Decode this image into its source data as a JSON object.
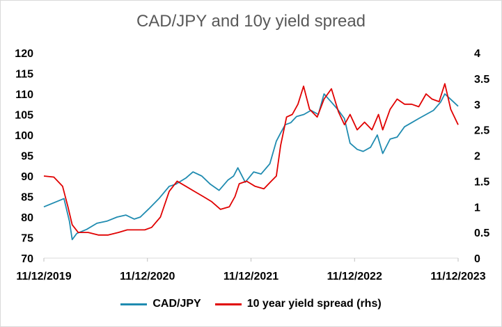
{
  "chart_data": {
    "type": "line",
    "title": "CAD/JPY and 10y yield spread",
    "x_tick_labels": [
      "11/12/2019",
      "11/12/2020",
      "11/12/2021",
      "11/12/2022",
      "11/12/2023"
    ],
    "x_range": [
      "2019-12-11",
      "2023-12-11"
    ],
    "y_left": {
      "range": [
        70,
        120
      ],
      "ticks": [
        "70",
        "75",
        "80",
        "85",
        "90",
        "95",
        "100",
        "105",
        "110",
        "115",
        "120"
      ]
    },
    "y_right": {
      "range": [
        0,
        4
      ],
      "ticks": [
        "0",
        "0.5",
        "1",
        "1.5",
        "2",
        "2.5",
        "3",
        "3.5",
        "4"
      ]
    },
    "grid": false,
    "legend_position": "bottom",
    "series": [
      {
        "name": "CAD/JPY",
        "axis": "left",
        "color": "#1f8bb0",
        "x": [
          "2019-12-11",
          "2020-01-15",
          "2020-02-20",
          "2020-03-10",
          "2020-03-20",
          "2020-04-05",
          "2020-05-10",
          "2020-06-15",
          "2020-07-20",
          "2020-08-25",
          "2020-09-25",
          "2020-10-25",
          "2020-11-15",
          "2020-12-15",
          "2021-01-20",
          "2021-02-25",
          "2021-03-20",
          "2021-04-25",
          "2021-05-20",
          "2021-06-20",
          "2021-07-20",
          "2021-08-20",
          "2021-09-20",
          "2021-10-10",
          "2021-10-25",
          "2021-11-20",
          "2021-12-20",
          "2022-01-15",
          "2022-02-15",
          "2022-03-10",
          "2022-03-25",
          "2022-04-10",
          "2022-04-30",
          "2022-05-20",
          "2022-06-15",
          "2022-07-10",
          "2022-08-05",
          "2022-08-25",
          "2022-09-20",
          "2022-10-15",
          "2022-11-05",
          "2022-11-25",
          "2022-12-20",
          "2023-01-10",
          "2023-02-05",
          "2023-03-01",
          "2023-03-20",
          "2023-04-15",
          "2023-05-10",
          "2023-06-05",
          "2023-06-30",
          "2023-07-25",
          "2023-08-20",
          "2023-09-15",
          "2023-10-10",
          "2023-10-25",
          "2023-11-10",
          "2023-12-11"
        ],
        "y": [
          82.5,
          83.5,
          84.5,
          79,
          74.5,
          76,
          77,
          78.5,
          79,
          80,
          80.5,
          79.5,
          80,
          82,
          84.5,
          87.5,
          88,
          89.5,
          91,
          90,
          88,
          86.5,
          89,
          90,
          92,
          88.5,
          91,
          90.5,
          93,
          98.5,
          100.5,
          102.5,
          103,
          104.5,
          105,
          106,
          105,
          110,
          108,
          106,
          104,
          98,
          96.5,
          96,
          97,
          100,
          95.5,
          99,
          99.5,
          102,
          103,
          104,
          105,
          106,
          108,
          110,
          109,
          107
        ]
      },
      {
        "name": "10 year yield spread (rhs)",
        "axis": "right",
        "color": "#e00000",
        "x": [
          "2019-12-11",
          "2020-01-15",
          "2020-02-15",
          "2020-03-05",
          "2020-03-20",
          "2020-04-10",
          "2020-05-15",
          "2020-06-20",
          "2020-07-25",
          "2020-08-30",
          "2020-09-30",
          "2020-10-30",
          "2020-12-01",
          "2020-12-25",
          "2021-01-25",
          "2021-02-25",
          "2021-03-25",
          "2021-04-25",
          "2021-05-25",
          "2021-06-25",
          "2021-07-25",
          "2021-08-25",
          "2021-09-25",
          "2021-10-15",
          "2021-10-30",
          "2021-11-25",
          "2021-12-25",
          "2022-01-25",
          "2022-02-20",
          "2022-03-10",
          "2022-03-25",
          "2022-04-15",
          "2022-05-05",
          "2022-05-25",
          "2022-06-14",
          "2022-07-05",
          "2022-08-01",
          "2022-08-25",
          "2022-09-20",
          "2022-10-15",
          "2022-11-05",
          "2022-11-25",
          "2022-12-20",
          "2023-01-15",
          "2023-02-10",
          "2023-03-05",
          "2023-03-20",
          "2023-04-15",
          "2023-05-10",
          "2023-06-05",
          "2023-06-30",
          "2023-07-25",
          "2023-08-20",
          "2023-09-10",
          "2023-10-05",
          "2023-10-25",
          "2023-11-15",
          "2023-12-11"
        ],
        "y": [
          1.6,
          1.58,
          1.4,
          1.0,
          0.65,
          0.5,
          0.5,
          0.45,
          0.45,
          0.5,
          0.55,
          0.55,
          0.55,
          0.6,
          0.8,
          1.3,
          1.5,
          1.4,
          1.3,
          1.2,
          1.1,
          0.95,
          1.0,
          1.2,
          1.45,
          1.5,
          1.4,
          1.35,
          1.5,
          1.6,
          2.2,
          2.75,
          2.8,
          3.0,
          3.35,
          2.9,
          2.75,
          3.1,
          3.3,
          2.85,
          2.6,
          2.8,
          2.5,
          2.65,
          2.5,
          2.8,
          2.5,
          2.9,
          3.1,
          3.0,
          3.0,
          2.95,
          3.2,
          3.1,
          3.05,
          3.4,
          2.9,
          2.6
        ]
      }
    ]
  }
}
